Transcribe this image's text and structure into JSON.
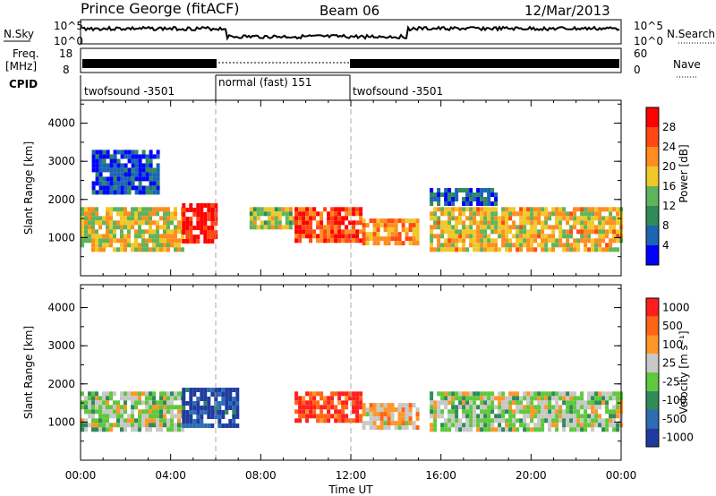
{
  "header": {
    "station": "Prince George (fitACF)",
    "beam": "Beam 06",
    "date": "12/Mar/2013"
  },
  "top_panels": {
    "nsky_label": "N.Sky",
    "nsky_ticks": [
      "10^5",
      "10^0"
    ],
    "nsearch_label": "N.Search",
    "nsearch_ticks": [
      "10^5",
      "10^0"
    ],
    "freq_label_1": "Freq.",
    "freq_label_2": "[MHz]",
    "freq_ticks": [
      "18",
      "8"
    ],
    "nave_label": "Nave",
    "nave_ticks": [
      "60",
      "0"
    ],
    "cpid_label": "CPID",
    "cpid_segments": [
      "twofsound -3501",
      "normal (fast) 151",
      "twofsound -3501"
    ]
  },
  "chart_data": [
    {
      "type": "heatmap",
      "name": "power",
      "ylabel": "Slant Range [km]",
      "yticks": [
        "4000",
        "3000",
        "2000",
        "1000"
      ],
      "ylim": [
        0,
        4600
      ],
      "xlim_hours": [
        0,
        24
      ],
      "colorbar_label": "Power [dB]",
      "colorbar_ticks": [
        "28",
        "24",
        "20",
        "16",
        "12",
        "8",
        "4"
      ],
      "colors": [
        "#0000ff",
        "#1c64b4",
        "#2e8b57",
        "#5fb45a",
        "#f0c828",
        "#ff8c1e",
        "#ff4814",
        "#ff0000"
      ],
      "echo_regions": [
        {
          "x": [
            0,
            4.5
          ],
          "y": [
            700,
            1800
          ],
          "level": 0.55
        },
        {
          "x": [
            4.5,
            6.0
          ],
          "y": [
            900,
            1900
          ],
          "level": 0.95
        },
        {
          "x": [
            7.5,
            9.5
          ],
          "y": [
            1300,
            1800
          ],
          "level": 0.5
        },
        {
          "x": [
            9.5,
            12.5
          ],
          "y": [
            900,
            1800
          ],
          "level": 0.85
        },
        {
          "x": [
            12.5,
            15.0
          ],
          "y": [
            800,
            1500
          ],
          "level": 0.7
        },
        {
          "x": [
            15.5,
            24
          ],
          "y": [
            700,
            1800
          ],
          "level": 0.6
        },
        {
          "x": [
            0.5,
            3.5
          ],
          "y": [
            2200,
            3300
          ],
          "level": 0.15
        },
        {
          "x": [
            15.5,
            18.5
          ],
          "y": [
            1900,
            2300
          ],
          "level": 0.2
        }
      ]
    },
    {
      "type": "heatmap",
      "name": "velocity",
      "xlabel": "Time UT",
      "xticks": [
        "00:00",
        "04:00",
        "08:00",
        "12:00",
        "16:00",
        "20:00",
        "00:00"
      ],
      "ylabel": "Slant Range [km]",
      "yticks": [
        "4000",
        "3000",
        "2000",
        "1000"
      ],
      "ylim": [
        0,
        4600
      ],
      "xlim_hours": [
        0,
        24
      ],
      "colorbar_label": "Velocity [m s⁻¹]",
      "colorbar_ticks": [
        "1000",
        "500",
        "100",
        "25",
        "-25",
        "-100",
        "-500",
        "-1000"
      ],
      "colors": [
        "#1e3ca0",
        "#2e6cb4",
        "#2e8b57",
        "#5fc83c",
        "#c8c8c8",
        "#ff9628",
        "#ff6414",
        "#ff1e1e"
      ],
      "echo_regions": [
        {
          "x": [
            0,
            4.5
          ],
          "y": [
            800,
            1800
          ],
          "level": 0.5
        },
        {
          "x": [
            4.5,
            7.0
          ],
          "y": [
            900,
            1900
          ],
          "level": 0.1
        },
        {
          "x": [
            9.5,
            12.5
          ],
          "y": [
            1000,
            1800
          ],
          "level": 0.9
        },
        {
          "x": [
            12.5,
            15.0
          ],
          "y": [
            900,
            1500
          ],
          "level": 0.65
        },
        {
          "x": [
            15.5,
            24
          ],
          "y": [
            800,
            1800
          ],
          "level": 0.5
        }
      ]
    }
  ]
}
